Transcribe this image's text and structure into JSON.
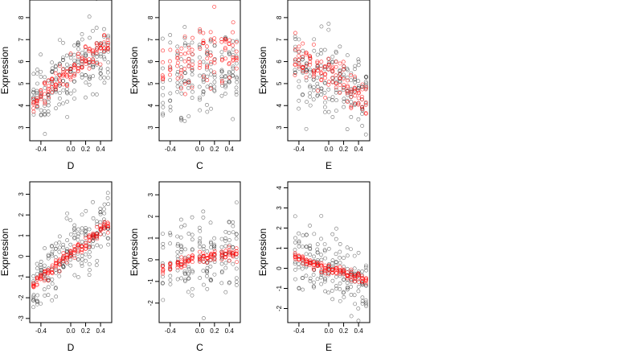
{
  "chart_data": [
    {
      "type": "scatter",
      "panel": "top-left",
      "xlabel": "D",
      "ylabel": "Expression",
      "xlim": [
        -0.55,
        0.55
      ],
      "ylim": [
        2.4,
        8.8
      ],
      "xticks": [
        -0.4,
        0.0,
        0.2,
        0.4
      ],
      "xtick_labels": [
        "-0.4",
        "0.0",
        "0.2",
        "0.4"
      ],
      "yticks": [
        3,
        4,
        5,
        6,
        7,
        8
      ],
      "ytick_labels": [
        "3",
        "4",
        "5",
        "6",
        "7",
        "8"
      ],
      "x_levels": [
        -0.5,
        -0.45,
        -0.4,
        -0.35,
        -0.3,
        -0.25,
        -0.2,
        -0.15,
        -0.1,
        -0.05,
        0.0,
        0.05,
        0.1,
        0.15,
        0.2,
        0.25,
        0.3,
        0.35,
        0.4,
        0.45,
        0.5
      ],
      "black_mean": [
        4.4,
        4.8,
        4.8,
        4.2,
        4.6,
        5.0,
        5.2,
        5.0,
        5.4,
        5.3,
        5.6,
        5.6,
        6.0,
        6.1,
        6.0,
        5.8,
        6.1,
        6.0,
        6.6,
        6.8,
        6.6
      ],
      "red_mean": [
        4.2,
        4.3,
        4.5,
        4.6,
        4.7,
        4.9,
        5.0,
        5.1,
        5.3,
        5.4,
        5.6,
        5.7,
        5.9,
        6.0,
        6.1,
        6.2,
        6.3,
        6.4,
        6.6,
        6.7,
        6.8
      ],
      "black_spread": 0.75,
      "red_spread": 0.3,
      "series": [
        {
          "name": "",
          "color": "#000000"
        },
        {
          "name": "",
          "color": "#ff0000"
        }
      ]
    },
    {
      "type": "scatter",
      "panel": "top-middle",
      "xlabel": "C",
      "ylabel": "Expression",
      "xlim": [
        -0.55,
        0.55
      ],
      "ylim": [
        2.4,
        8.8
      ],
      "xticks": [
        -0.4,
        0.0,
        0.2,
        0.4
      ],
      "xtick_labels": [
        "-0.4",
        "0.0",
        "0.2",
        "0.4"
      ],
      "yticks": [
        3,
        4,
        5,
        6,
        7,
        8
      ],
      "ytick_labels": [
        "3",
        "4",
        "5",
        "6",
        "7",
        "8"
      ],
      "x_levels": [
        -0.5,
        -0.4,
        -0.3,
        -0.25,
        -0.2,
        -0.15,
        -0.1,
        0.0,
        0.05,
        0.1,
        0.15,
        0.2,
        0.3,
        0.35,
        0.4,
        0.45,
        0.5
      ],
      "black_mean": [
        5.0,
        5.2,
        5.4,
        5.3,
        5.5,
        5.3,
        5.1,
        5.6,
        5.4,
        5.3,
        5.5,
        5.6,
        5.4,
        5.5,
        5.6,
        5.3,
        5.4
      ],
      "red_mean": [
        5.8,
        5.9,
        6.0,
        6.0,
        6.0,
        6.0,
        6.1,
        6.1,
        6.1,
        6.1,
        6.2,
        6.2,
        6.2,
        6.2,
        6.3,
        6.3,
        6.3
      ],
      "black_spread": 1.0,
      "red_spread": 0.7,
      "series": [
        {
          "name": "",
          "color": "#000000"
        },
        {
          "name": "",
          "color": "#ff0000"
        }
      ]
    },
    {
      "type": "scatter",
      "panel": "top-right",
      "xlabel": "E",
      "ylabel": "Expression",
      "xlim": [
        -0.55,
        0.55
      ],
      "ylim": [
        2.4,
        8.8
      ],
      "xticks": [
        -0.4,
        0.0,
        0.2,
        0.4
      ],
      "xtick_labels": [
        "-0.4",
        "0.0",
        "0.2",
        "0.4"
      ],
      "yticks": [
        3,
        4,
        5,
        6,
        7,
        8
      ],
      "ytick_labels": [
        "3",
        "4",
        "5",
        "6",
        "7",
        "8"
      ],
      "x_levels": [
        -0.45,
        -0.4,
        -0.35,
        -0.3,
        -0.25,
        -0.2,
        -0.15,
        -0.1,
        -0.05,
        0.0,
        0.05,
        0.1,
        0.15,
        0.2,
        0.25,
        0.3,
        0.35,
        0.4,
        0.45,
        0.5
      ],
      "black_mean": [
        5.8,
        5.9,
        5.6,
        5.5,
        5.6,
        5.3,
        5.4,
        5.2,
        5.1,
        5.3,
        5.0,
        4.9,
        5.0,
        4.8,
        4.8,
        4.7,
        4.9,
        4.6,
        4.5,
        4.6
      ],
      "red_mean": [
        6.2,
        6.1,
        6.0,
        5.9,
        5.8,
        5.7,
        5.6,
        5.5,
        5.4,
        5.3,
        5.2,
        5.1,
        5.0,
        4.9,
        4.8,
        4.7,
        4.6,
        4.5,
        4.4,
        4.3
      ],
      "black_spread": 0.9,
      "red_spread": 0.45,
      "series": [
        {
          "name": "",
          "color": "#000000"
        },
        {
          "name": "",
          "color": "#ff0000"
        }
      ]
    },
    {
      "type": "scatter",
      "panel": "bottom-left",
      "xlabel": "D",
      "ylabel": "Expression",
      "xlim": [
        -0.55,
        0.55
      ],
      "ylim": [
        -3.2,
        3.6
      ],
      "xticks": [
        -0.4,
        0.0,
        0.2,
        0.4
      ],
      "xtick_labels": [
        "-0.4",
        "0.0",
        "0.2",
        "0.4"
      ],
      "yticks": [
        -3,
        -2,
        -1,
        0,
        1,
        2,
        3
      ],
      "ytick_labels": [
        "-3",
        "-2",
        "-1",
        "0",
        "1",
        "2",
        "3"
      ],
      "x_levels": [
        -0.5,
        -0.45,
        -0.4,
        -0.35,
        -0.3,
        -0.25,
        -0.2,
        -0.15,
        -0.1,
        -0.05,
        0.0,
        0.05,
        0.1,
        0.15,
        0.2,
        0.25,
        0.3,
        0.35,
        0.4,
        0.45,
        0.5
      ],
      "black_mean": [
        -1.4,
        -1.2,
        -1.0,
        -0.9,
        -0.8,
        -0.6,
        -0.4,
        -0.2,
        0.0,
        0.2,
        0.2,
        0.3,
        0.5,
        0.6,
        0.8,
        0.9,
        1.0,
        1.1,
        1.5,
        1.6,
        1.6
      ],
      "red_mean": [
        -1.5,
        -1.3,
        -1.1,
        -0.9,
        -0.8,
        -0.6,
        -0.4,
        -0.3,
        -0.1,
        0.0,
        0.1,
        0.2,
        0.4,
        0.5,
        0.6,
        0.8,
        0.9,
        1.1,
        1.3,
        1.4,
        1.5
      ],
      "black_spread": 0.8,
      "red_spread": 0.15,
      "series": [
        {
          "name": "",
          "color": "#000000"
        },
        {
          "name": "",
          "color": "#ff0000"
        }
      ]
    },
    {
      "type": "scatter",
      "panel": "bottom-middle",
      "xlabel": "C",
      "ylabel": "Expression",
      "xlim": [
        -0.55,
        0.55
      ],
      "ylim": [
        -2.9,
        3.6
      ],
      "xticks": [
        -0.4,
        0.0,
        0.2,
        0.4
      ],
      "xtick_labels": [
        "-0.4",
        "0.0",
        "0.2",
        "0.4"
      ],
      "yticks": [
        -2,
        -1,
        0,
        1,
        2,
        3
      ],
      "ytick_labels": [
        "-2",
        "-1",
        "0",
        "1",
        "2",
        "3"
      ],
      "x_levels": [
        -0.5,
        -0.4,
        -0.3,
        -0.25,
        -0.2,
        -0.15,
        -0.1,
        0.0,
        0.05,
        0.1,
        0.15,
        0.2,
        0.3,
        0.35,
        0.4,
        0.45,
        0.5
      ],
      "black_mean": [
        -0.3,
        -0.2,
        -0.1,
        0.0,
        0.0,
        -0.1,
        0.1,
        0.1,
        0.0,
        0.2,
        0.1,
        0.3,
        0.2,
        0.3,
        0.4,
        0.3,
        0.4
      ],
      "red_mean": [
        -0.35,
        -0.3,
        -0.2,
        -0.15,
        -0.1,
        -0.05,
        0.0,
        0.05,
        0.1,
        0.12,
        0.15,
        0.2,
        0.25,
        0.28,
        0.3,
        0.32,
        0.35
      ],
      "black_spread": 0.9,
      "red_spread": 0.12,
      "series": [
        {
          "name": "",
          "color": "#000000"
        },
        {
          "name": "",
          "color": "#ff0000"
        }
      ]
    },
    {
      "type": "scatter",
      "panel": "bottom-right",
      "xlabel": "E",
      "ylabel": "Expression",
      "xlim": [
        -0.55,
        0.55
      ],
      "ylim": [
        -2.7,
        4.3
      ],
      "xticks": [
        -0.4,
        0.0,
        0.2,
        0.4
      ],
      "xtick_labels": [
        "-0.4",
        "0.0",
        "0.2",
        "0.4"
      ],
      "yticks": [
        -2,
        -1,
        0,
        1,
        2,
        3,
        4
      ],
      "ytick_labels": [
        "-2",
        "-1",
        "0",
        "1",
        "2",
        "3",
        "4"
      ],
      "x_levels": [
        -0.45,
        -0.4,
        -0.35,
        -0.3,
        -0.25,
        -0.2,
        -0.15,
        -0.1,
        -0.05,
        0.0,
        0.05,
        0.1,
        0.15,
        0.2,
        0.25,
        0.3,
        0.35,
        0.4,
        0.45,
        0.5
      ],
      "black_mean": [
        0.5,
        0.4,
        0.3,
        0.3,
        0.2,
        0.1,
        0.1,
        0.0,
        0.0,
        -0.1,
        -0.1,
        -0.2,
        -0.2,
        -0.3,
        -0.3,
        -0.4,
        -0.4,
        -0.5,
        -0.5,
        -0.6
      ],
      "red_mean": [
        0.55,
        0.5,
        0.4,
        0.35,
        0.3,
        0.2,
        0.15,
        0.1,
        0.05,
        0.0,
        -0.05,
        -0.1,
        -0.15,
        -0.2,
        -0.25,
        -0.3,
        -0.35,
        -0.45,
        -0.5,
        -0.6
      ],
      "black_spread": 0.8,
      "red_spread": 0.12,
      "series": [
        {
          "name": "",
          "color": "#000000"
        },
        {
          "name": "",
          "color": "#ff0000"
        }
      ]
    }
  ]
}
